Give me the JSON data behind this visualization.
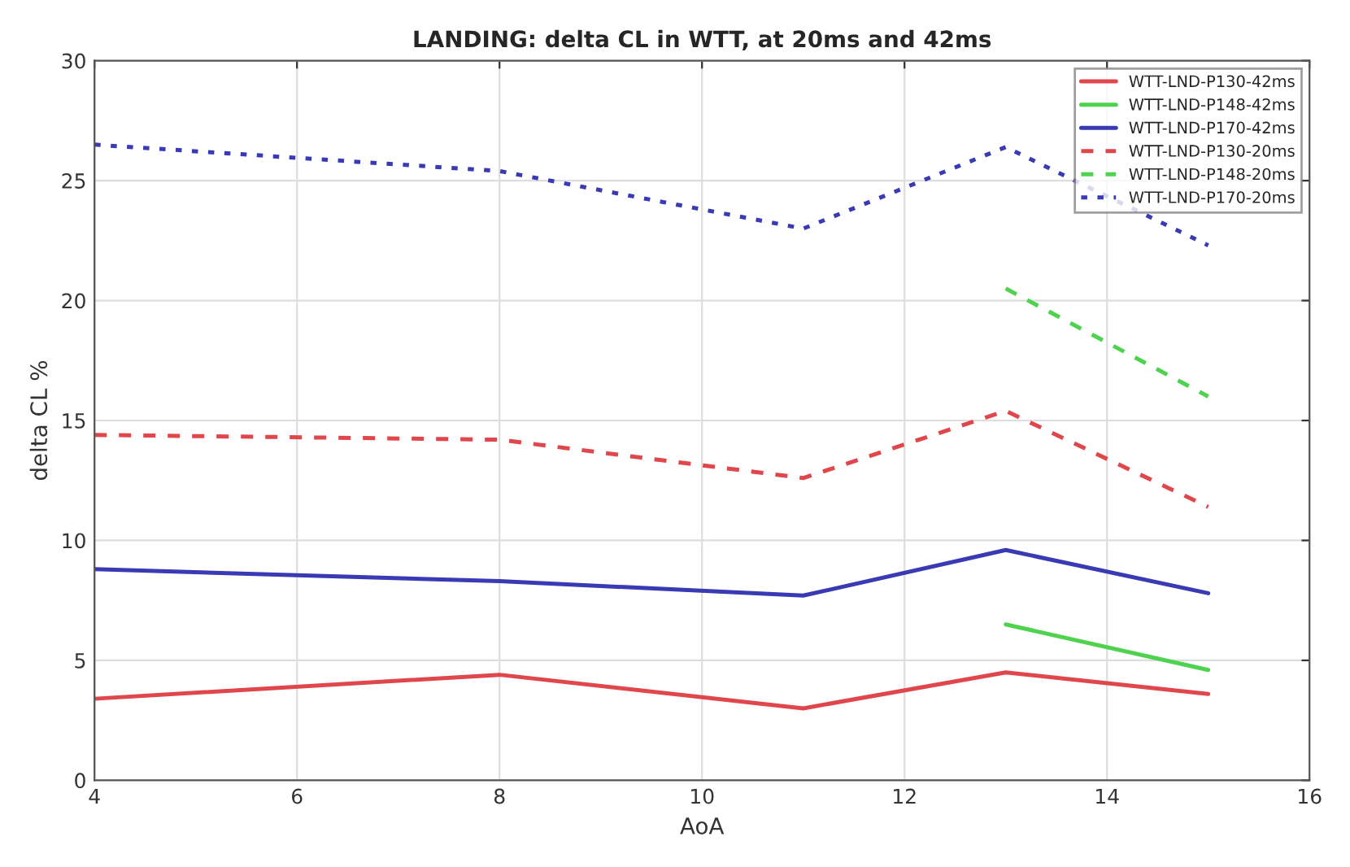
{
  "chart_data": {
    "type": "line",
    "title": "LANDING: delta CL in WTT, at 20ms and 42ms",
    "xlabel": "AoA",
    "ylabel": "delta CL %",
    "x": [
      4,
      8,
      11,
      13,
      15
    ],
    "series": [
      {
        "name": "WTT-LND-P130-42ms",
        "color": "#e0474c",
        "line_style": "solid",
        "values": [
          3.4,
          4.4,
          3.0,
          4.5,
          3.6
        ]
      },
      {
        "name": "WTT-LND-P148-42ms",
        "color": "#4fd34f",
        "line_style": "solid",
        "values": [
          null,
          null,
          null,
          6.5,
          4.6
        ]
      },
      {
        "name": "WTT-LND-P170-42ms",
        "color": "#3a3ab4",
        "line_style": "solid",
        "values": [
          8.8,
          8.3,
          7.7,
          9.6,
          7.8
        ]
      },
      {
        "name": "WTT-LND-P130-20ms",
        "color": "#e0474c",
        "line_style": "dashed",
        "values": [
          14.4,
          14.2,
          12.6,
          15.4,
          11.4
        ]
      },
      {
        "name": "WTT-LND-P148-20ms",
        "color": "#4fd34f",
        "line_style": "dashed",
        "values": [
          null,
          null,
          null,
          20.5,
          16.0
        ]
      },
      {
        "name": "WTT-LND-P170-20ms",
        "color": "#3a3ab4",
        "line_style": "dotted",
        "values": [
          26.5,
          25.4,
          23.0,
          26.4,
          22.3
        ]
      }
    ],
    "xlim": [
      4,
      16
    ],
    "xticks": [
      4,
      6,
      8,
      10,
      12,
      14,
      16
    ],
    "ylim": [
      0,
      30
    ],
    "yticks": [
      0,
      5,
      10,
      15,
      20,
      25,
      30
    ],
    "grid": true,
    "legend": "top right"
  }
}
